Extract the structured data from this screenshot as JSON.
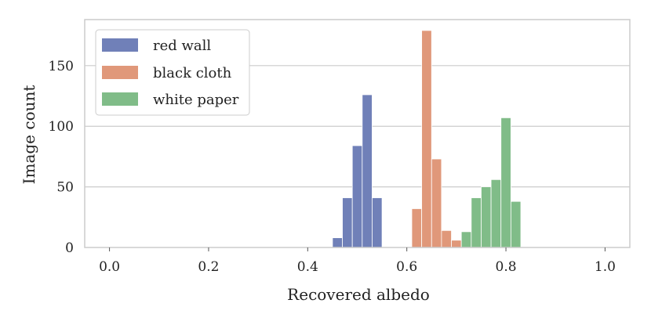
{
  "chart_data": {
    "type": "bar",
    "title": "",
    "xlabel": "Recovered albedo",
    "ylabel": "Image count",
    "xlim": [
      -0.05,
      1.05
    ],
    "ylim": [
      0,
      188
    ],
    "xticks": [
      0.0,
      0.2,
      0.4,
      0.6,
      0.8,
      1.0
    ],
    "xtick_labels": [
      "0.0",
      "0.2",
      "0.4",
      "0.6",
      "0.8",
      "1.0"
    ],
    "yticks": [
      0,
      50,
      100,
      150
    ],
    "ytick_labels": [
      "0",
      "50",
      "100",
      "150"
    ],
    "grid": "horizontal",
    "legend_position": "top-left",
    "bin_width": 0.02,
    "series": [
      {
        "name": "red wall",
        "color": "#7080b8",
        "bins": [
          {
            "x0": 0.45,
            "x1": 0.47,
            "count": 8
          },
          {
            "x0": 0.47,
            "x1": 0.49,
            "count": 41
          },
          {
            "x0": 0.49,
            "x1": 0.51,
            "count": 84
          },
          {
            "x0": 0.51,
            "x1": 0.53,
            "count": 126
          },
          {
            "x0": 0.53,
            "x1": 0.55,
            "count": 41
          }
        ]
      },
      {
        "name": "black cloth",
        "color": "#e0987a",
        "bins": [
          {
            "x0": 0.61,
            "x1": 0.63,
            "count": 32
          },
          {
            "x0": 0.63,
            "x1": 0.65,
            "count": 179
          },
          {
            "x0": 0.65,
            "x1": 0.67,
            "count": 73
          },
          {
            "x0": 0.67,
            "x1": 0.69,
            "count": 14
          },
          {
            "x0": 0.69,
            "x1": 0.71,
            "count": 6
          }
        ]
      },
      {
        "name": "white paper",
        "color": "#80bc88",
        "bins": [
          {
            "x0": 0.71,
            "x1": 0.73,
            "count": 13
          },
          {
            "x0": 0.73,
            "x1": 0.75,
            "count": 41
          },
          {
            "x0": 0.75,
            "x1": 0.77,
            "count": 50
          },
          {
            "x0": 0.77,
            "x1": 0.79,
            "count": 56
          },
          {
            "x0": 0.79,
            "x1": 0.81,
            "count": 107
          },
          {
            "x0": 0.81,
            "x1": 0.83,
            "count": 38
          }
        ]
      }
    ]
  }
}
